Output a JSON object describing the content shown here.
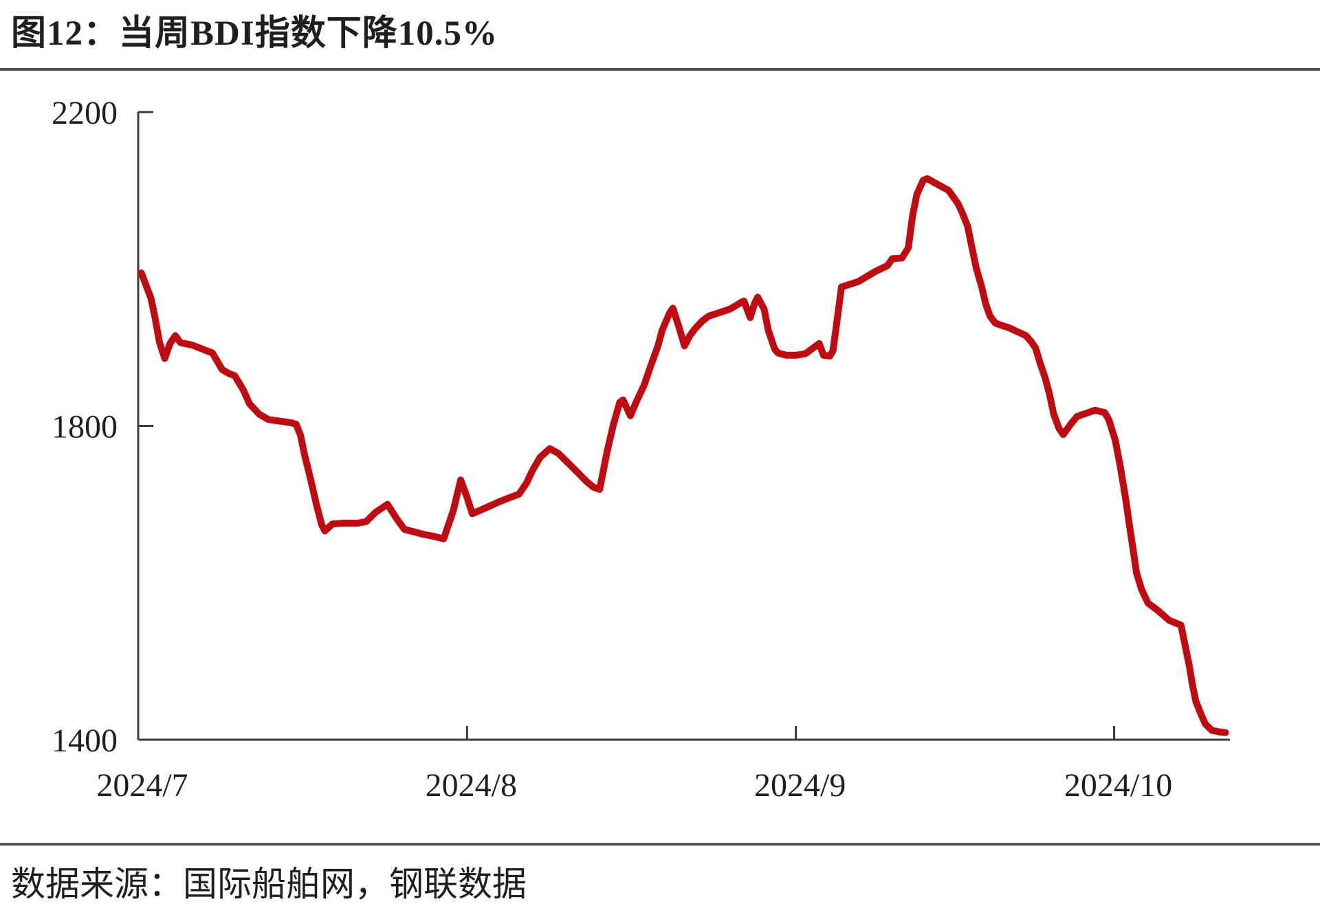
{
  "page": {
    "title": "图12：当周BDI指数下降10.5%",
    "source": "数据来源：国际船舶网，钢联数据"
  },
  "colors": {
    "line": "#c00b10",
    "axis": "#3a3a3a",
    "rule": "#555555",
    "text": "#1f1f1f"
  },
  "chart_data": {
    "type": "line",
    "title": "图12：当周BDI指数下降10.5%",
    "source": "数据来源：国际船舶网，钢联数据",
    "grid": false,
    "legend": "none",
    "x_axis": {
      "unit": "date",
      "start_label": "2024/7",
      "end_day": 103,
      "ticks": [
        {
          "label": "2024/7",
          "day": 0
        },
        {
          "label": "2024/8",
          "day": 31
        },
        {
          "label": "2024/9",
          "day": 62
        },
        {
          "label": "2024/10",
          "day": 92
        }
      ]
    },
    "y_axis": {
      "min": 1400,
      "max": 2200,
      "ticks": [
        2200,
        1800,
        1400
      ]
    },
    "series": [
      {
        "name": "BDI",
        "color": "#c00b10",
        "points": [
          [
            0.3,
            1995
          ],
          [
            1.2,
            1963
          ],
          [
            1.6,
            1937
          ],
          [
            2.0,
            1907
          ],
          [
            2.5,
            1886
          ],
          [
            3.0,
            1905
          ],
          [
            3.5,
            1915
          ],
          [
            4.0,
            1906
          ],
          [
            5.1,
            1903
          ],
          [
            6.4,
            1896
          ],
          [
            7.0,
            1893
          ],
          [
            7.9,
            1872
          ],
          [
            8.5,
            1867
          ],
          [
            9.1,
            1864
          ],
          [
            9.9,
            1846
          ],
          [
            10.5,
            1828
          ],
          [
            11.4,
            1815
          ],
          [
            12.3,
            1808
          ],
          [
            13.4,
            1806
          ],
          [
            14.4,
            1804
          ],
          [
            14.9,
            1802
          ],
          [
            15.3,
            1788
          ],
          [
            15.7,
            1762
          ],
          [
            16.2,
            1735
          ],
          [
            16.8,
            1700
          ],
          [
            17.3,
            1674
          ],
          [
            17.6,
            1666
          ],
          [
            18.3,
            1675
          ],
          [
            19.4,
            1676
          ],
          [
            20.7,
            1676
          ],
          [
            21.5,
            1678
          ],
          [
            22.4,
            1690
          ],
          [
            23.5,
            1700
          ],
          [
            24.3,
            1683
          ],
          [
            25.1,
            1668
          ],
          [
            26.0,
            1665
          ],
          [
            26.8,
            1662
          ],
          [
            27.9,
            1659
          ],
          [
            28.8,
            1656
          ],
          [
            29.7,
            1692
          ],
          [
            30.4,
            1731
          ],
          [
            31.0,
            1709
          ],
          [
            31.5,
            1688
          ],
          [
            32.5,
            1694
          ],
          [
            34.0,
            1703
          ],
          [
            35.1,
            1709
          ],
          [
            35.9,
            1713
          ],
          [
            36.6,
            1727
          ],
          [
            37.2,
            1744
          ],
          [
            37.9,
            1760
          ],
          [
            38.8,
            1771
          ],
          [
            39.6,
            1765
          ],
          [
            40.5,
            1753
          ],
          [
            41.4,
            1741
          ],
          [
            42.2,
            1730
          ],
          [
            42.9,
            1722
          ],
          [
            43.5,
            1719
          ],
          [
            44.2,
            1767
          ],
          [
            44.8,
            1802
          ],
          [
            45.4,
            1830
          ],
          [
            45.7,
            1833
          ],
          [
            46.4,
            1813
          ],
          [
            47.0,
            1832
          ],
          [
            47.7,
            1852
          ],
          [
            48.3,
            1876
          ],
          [
            49.0,
            1902
          ],
          [
            49.4,
            1922
          ],
          [
            50.1,
            1944
          ],
          [
            50.4,
            1950
          ],
          [
            51.0,
            1925
          ],
          [
            51.5,
            1902
          ],
          [
            52.0,
            1915
          ],
          [
            52.5,
            1924
          ],
          [
            53.2,
            1934
          ],
          [
            53.8,
            1940
          ],
          [
            54.7,
            1944
          ],
          [
            55.8,
            1949
          ],
          [
            56.8,
            1957
          ],
          [
            57.1,
            1959
          ],
          [
            57.7,
            1938
          ],
          [
            58.1,
            1956
          ],
          [
            58.4,
            1964
          ],
          [
            59.0,
            1949
          ],
          [
            59.4,
            1922
          ],
          [
            60.0,
            1898
          ],
          [
            60.3,
            1893
          ],
          [
            61.1,
            1890
          ],
          [
            62.0,
            1890
          ],
          [
            62.9,
            1892
          ],
          [
            64.2,
            1905
          ],
          [
            64.6,
            1890
          ],
          [
            65.2,
            1889
          ],
          [
            65.5,
            1896
          ],
          [
            66.3,
            1977
          ],
          [
            67.9,
            1984
          ],
          [
            69.5,
            1997
          ],
          [
            70.6,
            2004
          ],
          [
            71.1,
            2013
          ],
          [
            72.0,
            2014
          ],
          [
            72.6,
            2027
          ],
          [
            73.0,
            2068
          ],
          [
            73.4,
            2095
          ],
          [
            74.0,
            2113
          ],
          [
            74.4,
            2115
          ],
          [
            75.6,
            2106
          ],
          [
            76.4,
            2100
          ],
          [
            77.3,
            2083
          ],
          [
            77.7,
            2071
          ],
          [
            78.2,
            2054
          ],
          [
            78.6,
            2027
          ],
          [
            79.0,
            2001
          ],
          [
            79.5,
            1978
          ],
          [
            79.9,
            1955
          ],
          [
            80.3,
            1940
          ],
          [
            80.8,
            1931
          ],
          [
            81.4,
            1928
          ],
          [
            82.1,
            1925
          ],
          [
            82.9,
            1920
          ],
          [
            83.7,
            1915
          ],
          [
            84.2,
            1907
          ],
          [
            84.6,
            1899
          ],
          [
            85.0,
            1881
          ],
          [
            85.5,
            1861
          ],
          [
            85.9,
            1841
          ],
          [
            86.3,
            1815
          ],
          [
            86.8,
            1797
          ],
          [
            87.2,
            1789
          ],
          [
            87.9,
            1802
          ],
          [
            88.5,
            1812
          ],
          [
            90.2,
            1820
          ],
          [
            91.1,
            1817
          ],
          [
            91.5,
            1808
          ],
          [
            92.1,
            1782
          ],
          [
            92.6,
            1747
          ],
          [
            93.1,
            1706
          ],
          [
            93.5,
            1668
          ],
          [
            93.8,
            1642
          ],
          [
            94.1,
            1613
          ],
          [
            94.6,
            1591
          ],
          [
            95.2,
            1574
          ],
          [
            96.1,
            1565
          ],
          [
            97.2,
            1552
          ],
          [
            98.3,
            1546
          ],
          [
            98.8,
            1513
          ],
          [
            99.1,
            1493
          ],
          [
            99.4,
            1469
          ],
          [
            99.7,
            1449
          ],
          [
            100.2,
            1432
          ],
          [
            100.6,
            1420
          ],
          [
            101.2,
            1412
          ],
          [
            101.9,
            1410
          ],
          [
            102.5,
            1409
          ]
        ]
      }
    ]
  }
}
